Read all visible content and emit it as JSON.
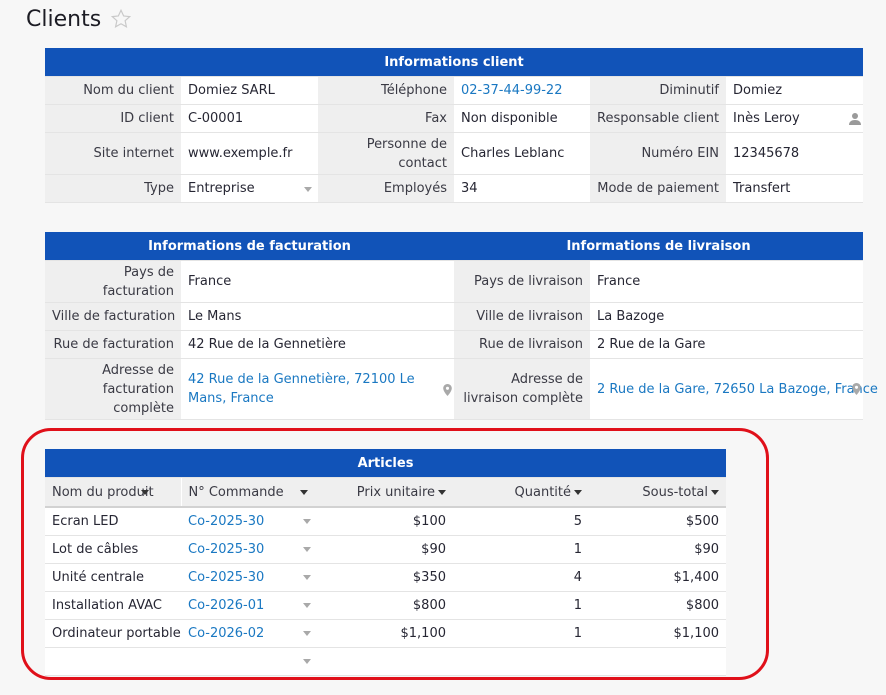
{
  "page": {
    "title": "Clients"
  },
  "client": {
    "header": "Informations client",
    "rows": [
      [
        {
          "label": "Nom du client",
          "value": "Domiez SARL"
        },
        {
          "label": "Téléphone",
          "value": "02-37-44-99-22"
        },
        {
          "label": "Diminutif",
          "value": "Domiez"
        }
      ],
      [
        {
          "label": "ID client",
          "value": "C-00001"
        },
        {
          "label": "Fax",
          "value": "Non disponible"
        },
        {
          "label": "Responsable client",
          "value": "Inès Leroy"
        }
      ],
      [
        {
          "label": "Site internet",
          "value": "www.exemple.fr"
        },
        {
          "label": "Personne de contact",
          "value": "Charles Leblanc"
        },
        {
          "label": "Numéro EIN",
          "value": "12345678"
        }
      ],
      [
        {
          "label": "Type",
          "value": "Entreprise"
        },
        {
          "label": "Employés",
          "value": "34"
        },
        {
          "label": "Mode de paiement",
          "value": "Transfert"
        }
      ]
    ]
  },
  "billing": {
    "header": "Informations de facturation",
    "rows": [
      {
        "label": "Pays de facturation",
        "value": "France"
      },
      {
        "label": "Ville de facturation",
        "value": "Le Mans"
      },
      {
        "label": "Rue de facturation",
        "value": "42 Rue de la Gennetière"
      },
      {
        "label": "Adresse de facturation complète",
        "value": "42 Rue de la Gennetière, 72100 Le Mans, France"
      }
    ]
  },
  "shipping": {
    "header": "Informations de livraison",
    "rows": [
      {
        "label": "Pays de livraison",
        "value": "France"
      },
      {
        "label": "Ville de livraison",
        "value": "La Bazoge"
      },
      {
        "label": "Rue de livraison",
        "value": "2 Rue de la Gare"
      },
      {
        "label": "Adresse de livraison complète",
        "value": "2 Rue de la Gare, 72650 La Bazoge, France"
      }
    ]
  },
  "articles": {
    "header": "Articles",
    "columns": [
      "Nom du produit",
      "N° Commande",
      "Prix unitaire",
      "Quantité",
      "Sous-total"
    ],
    "rows": [
      {
        "product": "Ecran LED",
        "order": "Co-2025-30",
        "price": "$100",
        "qty": "5",
        "subtotal": "$500"
      },
      {
        "product": "Lot de câbles",
        "order": "Co-2025-30",
        "price": "$90",
        "qty": "1",
        "subtotal": "$90"
      },
      {
        "product": "Unité centrale",
        "order": "Co-2025-30",
        "price": "$350",
        "qty": "4",
        "subtotal": "$1,400"
      },
      {
        "product": "Installation AVAC",
        "order": "Co-2026-01",
        "price": "$800",
        "qty": "1",
        "subtotal": "$800"
      },
      {
        "product": "Ordinateur portable",
        "order": "Co-2026-02",
        "price": "$1,100",
        "qty": "1",
        "subtotal": "$1,100"
      }
    ]
  },
  "colors": {
    "header_blue": "#1153b8",
    "link_blue": "#1a78c2",
    "highlight_red": "#e0101a"
  },
  "icons": {
    "favorite": "star-icon",
    "map": "map-pin-icon",
    "user": "person-icon",
    "dropdown": "chevron-down-icon"
  }
}
